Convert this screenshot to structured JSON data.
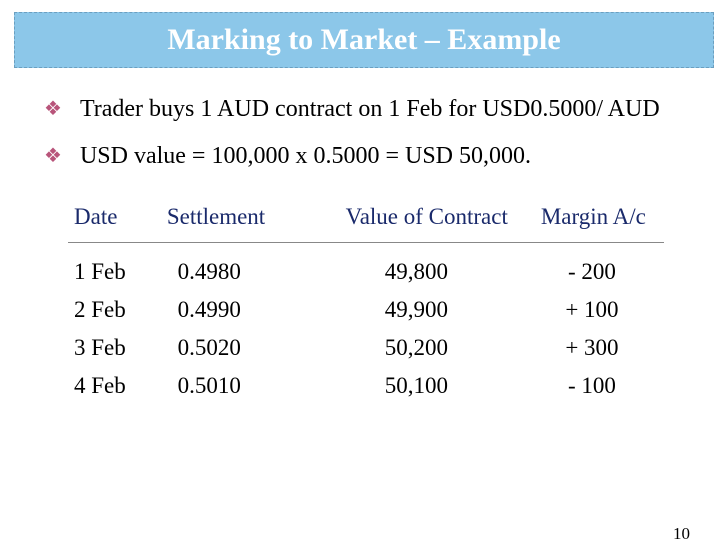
{
  "title": "Marking to Market – Example",
  "bullets": [
    "Trader buys 1 AUD contract on 1 Feb for USD0.5000/ AUD",
    "USD value = 100,000 x 0.5000 = USD 50,000."
  ],
  "table": {
    "headers": {
      "date": "Date",
      "settlement": "Settlement",
      "value": "Value of Contract",
      "margin": "Margin A/c"
    },
    "rows": [
      {
        "date": "1 Feb",
        "settlement": "0.4980",
        "value": "49,800",
        "margin": "-  200"
      },
      {
        "date": "2 Feb",
        "settlement": "0.4990",
        "value": "49,900",
        "margin": "+ 100"
      },
      {
        "date": "3 Feb",
        "settlement": "0.5020",
        "value": "50,200",
        "margin": "+ 300"
      },
      {
        "date": "4 Feb",
        "settlement": "0.5010",
        "value": "50,100",
        "margin": "-  100"
      }
    ]
  },
  "page_number": "10",
  "colors": {
    "title_bg": "#8cc7e9",
    "title_text": "#ffffff",
    "bullet": "#b8547a",
    "header_text": "#1a2a6b",
    "body_text": "#000000"
  }
}
